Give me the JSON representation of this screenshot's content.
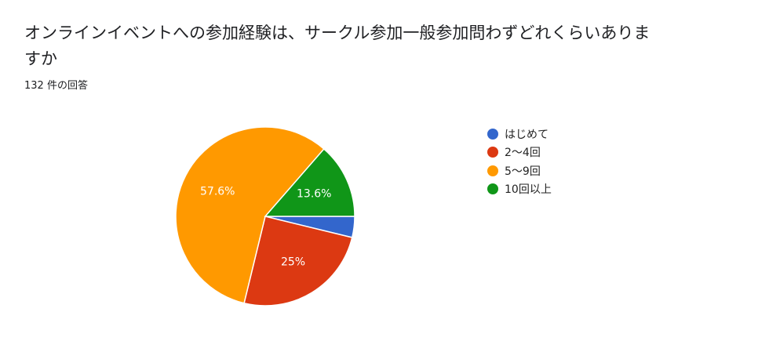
{
  "question": {
    "title": "オンラインイベントへの参加経験は、サークル参加一般参加問わずどれくらいありますか",
    "response_count": "132 件の回答"
  },
  "chart_data": {
    "type": "pie",
    "title": "オンラインイベントへの参加経験は、サークル参加一般参加問わずどれくらいありますか",
    "categories": [
      "はじめて",
      "2〜4回",
      "5〜9回",
      "10回以上"
    ],
    "values": [
      3.8,
      25.0,
      57.6,
      13.6
    ],
    "data_labels": [
      "",
      "25%",
      "57.6%",
      "13.6%"
    ],
    "colors": [
      "#3366cc",
      "#dc3912",
      "#ff9900",
      "#109618"
    ],
    "legend_position": "right"
  }
}
